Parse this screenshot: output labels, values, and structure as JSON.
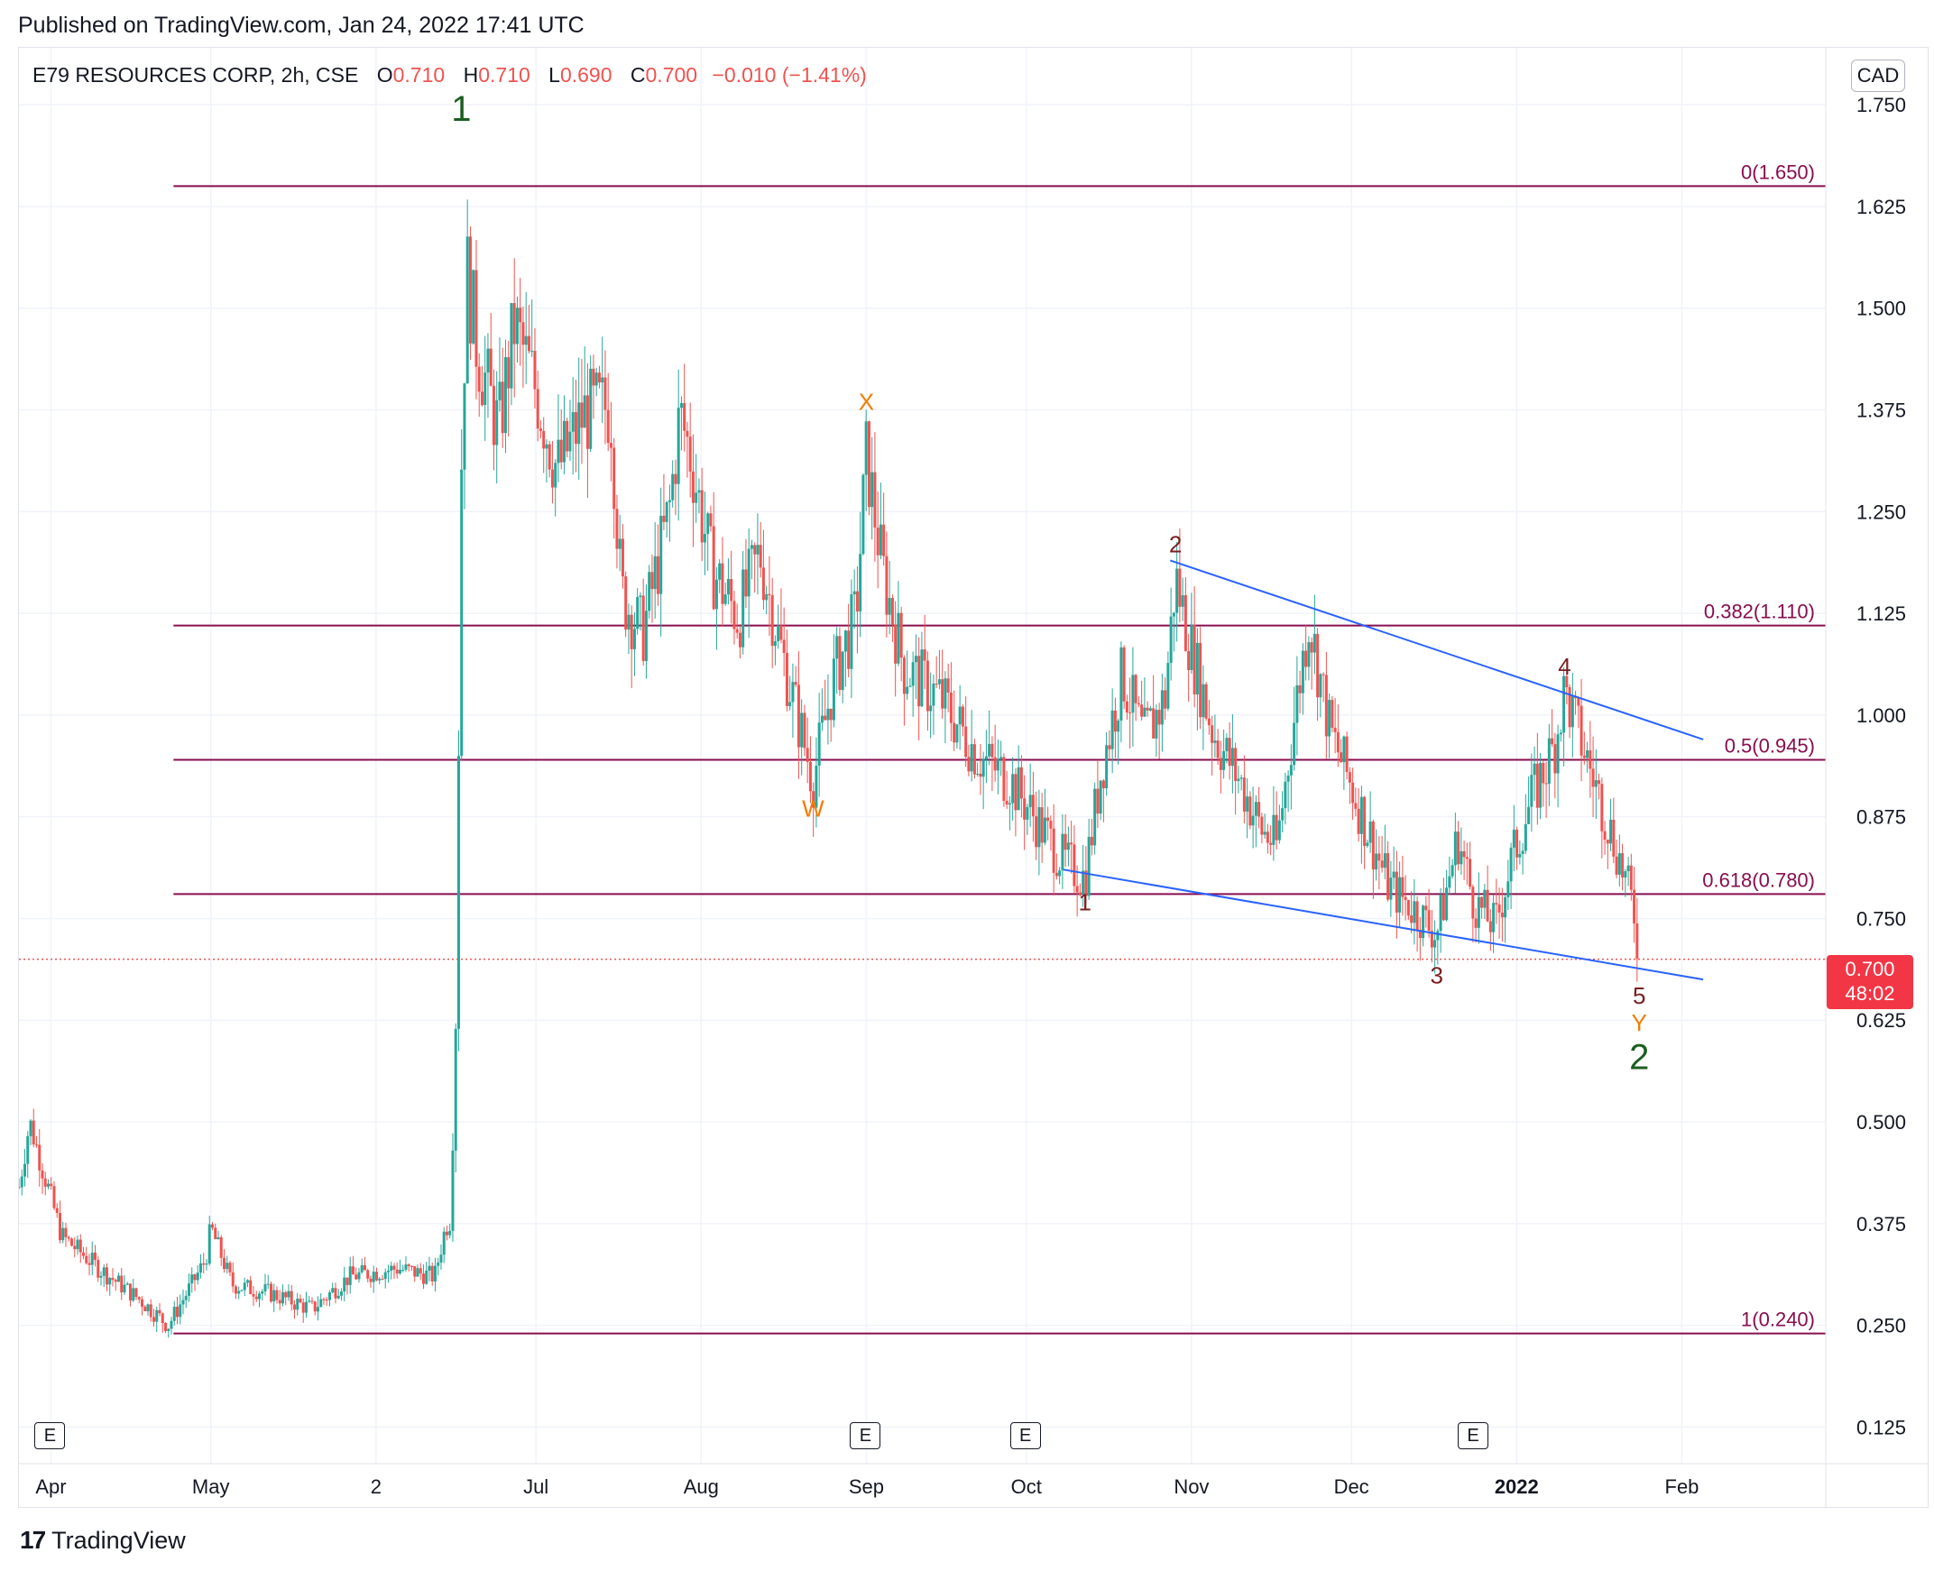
{
  "header": {
    "published": "Published on TradingView.com, Jan 24, 2022 17:41 UTC"
  },
  "legend": {
    "symbol": "E79 RESOURCES CORP, 2h, CSE",
    "open_label": "O",
    "open": "0.710",
    "high_label": "H",
    "high": "0.710",
    "low_label": "L",
    "low": "0.690",
    "close_label": "C",
    "close": "0.700",
    "change": "−0.010 (−1.41%)"
  },
  "currency": "CAD",
  "last_price": {
    "price": "0.700",
    "countdown": "48:02"
  },
  "earnings_badge": "E",
  "footer": {
    "brand": "TradingView",
    "logo": "17"
  },
  "colors": {
    "up": "#26a69a",
    "down": "#ef5350",
    "fib": "#880e4f",
    "trend": "#2962ff",
    "wave_green": "#1b5e20",
    "wave_orange": "#f57c00",
    "wave_dark": "#7b1f1f"
  },
  "chart_data": {
    "type": "candlestick",
    "title": "E79 RESOURCES CORP, 2h, CSE",
    "y_axis": {
      "position": "right",
      "ticks": [
        "1.750",
        "1.625",
        "1.500",
        "1.375",
        "1.250",
        "1.125",
        "1.000",
        "0.875",
        "0.750",
        "0.625",
        "0.500",
        "0.375",
        "0.250",
        "0.125"
      ],
      "range": [
        0.08,
        1.82
      ]
    },
    "x_axis": {
      "ticks": [
        {
          "label": "Apr",
          "x": "2021-04-01"
        },
        {
          "label": "May",
          "x": "2021-05-01"
        },
        {
          "label": "2",
          "x": "2021-06-01"
        },
        {
          "label": "Jul",
          "x": "2021-07-01"
        },
        {
          "label": "Aug",
          "x": "2021-08-01"
        },
        {
          "label": "Sep",
          "x": "2021-09-01"
        },
        {
          "label": "Oct",
          "x": "2021-10-01"
        },
        {
          "label": "Nov",
          "x": "2021-11-01"
        },
        {
          "label": "Dec",
          "x": "2021-12-01"
        },
        {
          "label": "2022",
          "x": "2022-01-01",
          "bold": true
        },
        {
          "label": "Feb",
          "x": "2022-02-01"
        }
      ],
      "range": [
        "2021-03-26",
        "2022-02-28"
      ]
    },
    "grid": true,
    "price_path": [
      [
        "2021-03-26",
        0.42
      ],
      [
        "2021-03-28",
        0.5
      ],
      [
        "2021-04-03",
        0.36
      ],
      [
        "2021-04-10",
        0.32
      ],
      [
        "2021-04-18",
        0.28
      ],
      [
        "2021-04-23",
        0.25
      ],
      [
        "2021-04-30",
        0.33
      ],
      [
        "2021-05-01",
        0.37
      ],
      [
        "2021-05-05",
        0.3
      ],
      [
        "2021-05-12",
        0.29
      ],
      [
        "2021-05-20",
        0.27
      ],
      [
        "2021-05-27",
        0.31
      ],
      [
        "2021-06-05",
        0.32
      ],
      [
        "2021-06-12",
        0.31
      ],
      [
        "2021-06-14",
        0.37
      ],
      [
        "2021-06-15",
        0.38
      ],
      [
        "2021-06-16",
        0.64
      ],
      [
        "2021-06-17",
        1.3
      ],
      [
        "2021-06-18",
        1.55
      ],
      [
        "2021-06-20",
        1.45
      ],
      [
        "2021-06-24",
        1.35
      ],
      [
        "2021-06-27",
        1.48
      ],
      [
        "2021-07-01",
        1.4
      ],
      [
        "2021-07-05",
        1.3
      ],
      [
        "2021-07-10",
        1.37
      ],
      [
        "2021-07-15",
        1.38
      ],
      [
        "2021-07-17",
        1.15
      ],
      [
        "2021-07-21",
        1.1
      ],
      [
        "2021-07-26",
        1.25
      ],
      [
        "2021-07-28",
        1.37
      ],
      [
        "2021-07-30",
        1.32
      ],
      [
        "2021-08-03",
        1.18
      ],
      [
        "2021-08-08",
        1.12
      ],
      [
        "2021-08-12",
        1.2
      ],
      [
        "2021-08-16",
        1.08
      ],
      [
        "2021-08-22",
        0.92
      ],
      [
        "2021-08-26",
        1.05
      ],
      [
        "2021-08-30",
        1.12
      ],
      [
        "2021-09-01",
        1.32
      ],
      [
        "2021-09-04",
        1.18
      ],
      [
        "2021-09-08",
        1.06
      ],
      [
        "2021-09-15",
        1.02
      ],
      [
        "2021-09-22",
        0.95
      ],
      [
        "2021-09-28",
        0.92
      ],
      [
        "2021-10-03",
        0.87
      ],
      [
        "2021-10-08",
        0.82
      ],
      [
        "2021-10-12",
        0.8
      ],
      [
        "2021-10-15",
        0.93
      ],
      [
        "2021-10-19",
        1.05
      ],
      [
        "2021-10-23",
        0.97
      ],
      [
        "2021-10-27",
        1.02
      ],
      [
        "2021-10-29",
        1.17
      ],
      [
        "2021-11-01",
        1.08
      ],
      [
        "2021-11-05",
        0.98
      ],
      [
        "2021-11-10",
        0.92
      ],
      [
        "2021-11-14",
        0.86
      ],
      [
        "2021-11-17",
        0.84
      ],
      [
        "2021-11-21",
        1.03
      ],
      [
        "2021-11-23",
        1.12
      ],
      [
        "2021-11-27",
        0.98
      ],
      [
        "2021-11-30",
        0.93
      ],
      [
        "2021-12-04",
        0.86
      ],
      [
        "2021-12-08",
        0.79
      ],
      [
        "2021-12-13",
        0.76
      ],
      [
        "2021-12-17",
        0.73
      ],
      [
        "2021-12-21",
        0.85
      ],
      [
        "2021-12-24",
        0.77
      ],
      [
        "2021-12-28",
        0.74
      ],
      [
        "2021-12-31",
        0.82
      ],
      [
        "2022-01-04",
        0.9
      ],
      [
        "2022-01-08",
        0.96
      ],
      [
        "2022-01-10",
        1.03
      ],
      [
        "2022-01-13",
        0.97
      ],
      [
        "2022-01-16",
        0.91
      ],
      [
        "2022-01-20",
        0.83
      ],
      [
        "2022-01-23",
        0.76
      ],
      [
        "2022-01-24",
        0.7
      ]
    ],
    "fib_levels": [
      {
        "label": "0(1.650)",
        "value": 1.65
      },
      {
        "label": "0.382(1.110)",
        "value": 1.11
      },
      {
        "label": "0.5(0.945)",
        "value": 0.945
      },
      {
        "label": "0.618(0.780)",
        "value": 0.78
      },
      {
        "label": "1(0.240)",
        "value": 0.24
      }
    ],
    "fib_start": "2021-04-24",
    "trendlines": [
      {
        "from": [
          "2021-10-28",
          1.19
        ],
        "to": [
          "2022-02-05",
          0.97
        ]
      },
      {
        "from": [
          "2021-10-08",
          0.81
        ],
        "to": [
          "2022-02-05",
          0.675
        ]
      }
    ],
    "last_price_line": 0.7,
    "wave_labels": [
      {
        "text": "1",
        "x": "2021-06-17",
        "y": 1.73,
        "color": "wave_green",
        "big": true
      },
      {
        "text": "X",
        "x": "2021-09-01",
        "y": 1.375,
        "color": "wave_orange"
      },
      {
        "text": "W",
        "x": "2021-08-22",
        "y": 0.875,
        "color": "wave_orange"
      },
      {
        "text": "2",
        "x": "2021-10-29",
        "y": 1.2,
        "color": "wave_dark"
      },
      {
        "text": "1",
        "x": "2021-10-12",
        "y": 0.76,
        "color": "wave_dark"
      },
      {
        "text": "3",
        "x": "2021-12-17",
        "y": 0.67,
        "color": "wave_dark"
      },
      {
        "text": "4",
        "x": "2022-01-10",
        "y": 1.05,
        "color": "wave_dark"
      },
      {
        "text": "5",
        "x": "2022-01-24",
        "y": 0.645,
        "color": "wave_dark"
      },
      {
        "text": "Y",
        "x": "2022-01-24",
        "y": 0.612,
        "color": "wave_orange"
      },
      {
        "text": "2",
        "x": "2022-01-24",
        "y": 0.565,
        "color": "wave_green",
        "big": true
      }
    ],
    "earnings_markers": [
      "2021-04-01",
      "2021-09-01",
      "2021-10-01",
      "2021-12-24"
    ]
  }
}
